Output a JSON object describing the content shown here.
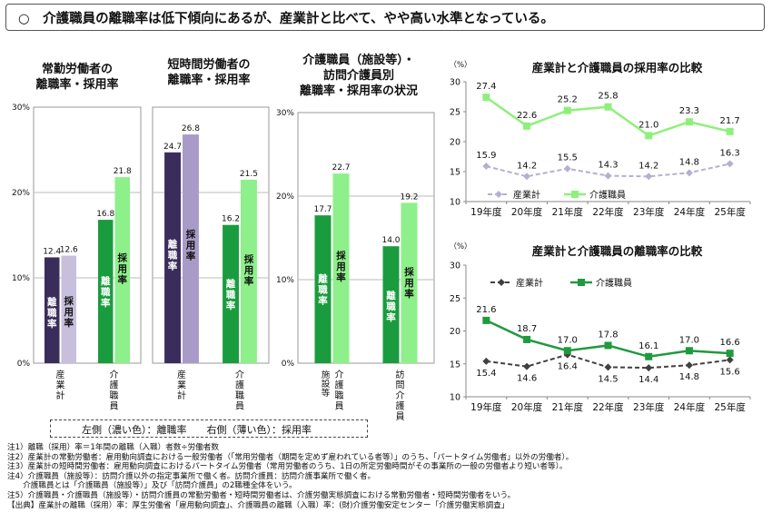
{
  "header": {
    "title": "○　介護職員の離職率は低下傾向にあるが、産業計と比べて、やや高い水準となっている。"
  },
  "legend_note": {
    "text": "左側（濃い色）：離職率　　右側（薄い色）：採用率"
  },
  "notes": [
    "注1）離職（採用）率＝1年間の離職（入職）者数÷労働者数",
    "注2）産業計の常勤労働者：雇用動向調査における一般労働者（「常用労働者（期間を定めず雇われている者等）」のうち、「パートタイム労働者」以外の労働者）。",
    "注3）産業計の短時間労働者：雇用動向調査におけるパートタイム労働者（常用労働者のうち、1日の所定労働時間がその事業所の一般の労働者より短い者等）。",
    "注4）介護職員（施設等）：訪問介護以外の指定事業所で働く者。訪問介護員：訪問介護事業所で働く者。",
    "　　介護職員とは「介護職員（施設等）」及び「訪問介護員」の2職種全体をいう。",
    "注5）介護職員・介護職員（施設等）・訪問介護員の常勤労働者・短時間労働者は、介護労働実態調査における常勤労働者・短時間労働者をいう。",
    "【出典】産業計の離職（採用）率：厚生労働省「雇用動向調査」、介護職員の離職（入職）率：(財)介護労働安定センター「介護労働実態調査」"
  ],
  "colors": {
    "industry_rate_dark": "#3b2d5b",
    "industry_rate_light": "#c7bfdc",
    "industry_part_dark": "#3b2d5b",
    "industry_part_light": "#a99bc8",
    "care_dark": "#1a9c3e",
    "care_light": "#8df08a",
    "line_industry": "#b7afd0",
    "line_care": "#8ef07a",
    "line_industry_dark": "#404040",
    "line_care_dark": "#1f9a3f"
  },
  "chart_data": [
    {
      "type": "bar",
      "title": "常勤労働者の\n離職率・採用率",
      "ylim": [
        0,
        30
      ],
      "ytick_labels": [
        "0%",
        "10%",
        "20%",
        "30%"
      ],
      "categories": [
        "産業計",
        "介護職員"
      ],
      "series": [
        {
          "name": "離職率",
          "values": [
            12.4,
            16.8
          ]
        },
        {
          "name": "採用率",
          "values": [
            12.6,
            21.8
          ]
        }
      ]
    },
    {
      "type": "bar",
      "title": "短時間労働者の\n離職率・採用率",
      "ylim": [
        0,
        30
      ],
      "categories": [
        "産業計",
        "介護職員"
      ],
      "series": [
        {
          "name": "離職率",
          "values": [
            24.7,
            16.2
          ]
        },
        {
          "name": "採用率",
          "values": [
            26.8,
            21.5
          ]
        }
      ]
    },
    {
      "type": "bar",
      "title": "介護職員（施設等）・\n訪問介護員別\n離職率・採用率の状況",
      "ylim": [
        0,
        30
      ],
      "ytick_labels": [
        "0%",
        "10%",
        "20%",
        "30%"
      ],
      "categories": [
        "（施設等）介護職員",
        "訪問介護員"
      ],
      "series": [
        {
          "name": "離職率",
          "values": [
            17.7,
            14.0
          ]
        },
        {
          "name": "採用率",
          "values": [
            22.7,
            19.2
          ]
        }
      ]
    },
    {
      "type": "line",
      "title": "産業計と介護職員の採用率の比較",
      "unit": "（%）",
      "x": [
        "19年度",
        "20年度",
        "21年度",
        "22年度",
        "23年度",
        "24年度",
        "25年度"
      ],
      "ylim": [
        10,
        30
      ],
      "yticks": [
        10,
        15,
        20,
        25,
        30
      ],
      "legend": "bottom-left",
      "series": [
        {
          "name": "産業計",
          "values": [
            15.9,
            14.2,
            15.5,
            14.3,
            14.2,
            14.8,
            16.3
          ]
        },
        {
          "name": "介護職員",
          "values": [
            27.4,
            22.6,
            25.2,
            25.8,
            21.0,
            23.3,
            21.7
          ]
        }
      ]
    },
    {
      "type": "line",
      "title": "産業計と介護職員の離職率の比較",
      "unit": "（%）",
      "x": [
        "19年度",
        "20年度",
        "21年度",
        "22年度",
        "23年度",
        "24年度",
        "25年度"
      ],
      "ylim": [
        10,
        30
      ],
      "yticks": [
        10,
        15,
        20,
        25,
        30
      ],
      "legend": "top",
      "series": [
        {
          "name": "産業計",
          "values": [
            15.4,
            14.6,
            16.4,
            14.5,
            14.4,
            14.8,
            15.6
          ]
        },
        {
          "name": "介護職員",
          "values": [
            21.6,
            18.7,
            17.0,
            17.8,
            16.1,
            17.0,
            16.6
          ]
        }
      ]
    }
  ]
}
